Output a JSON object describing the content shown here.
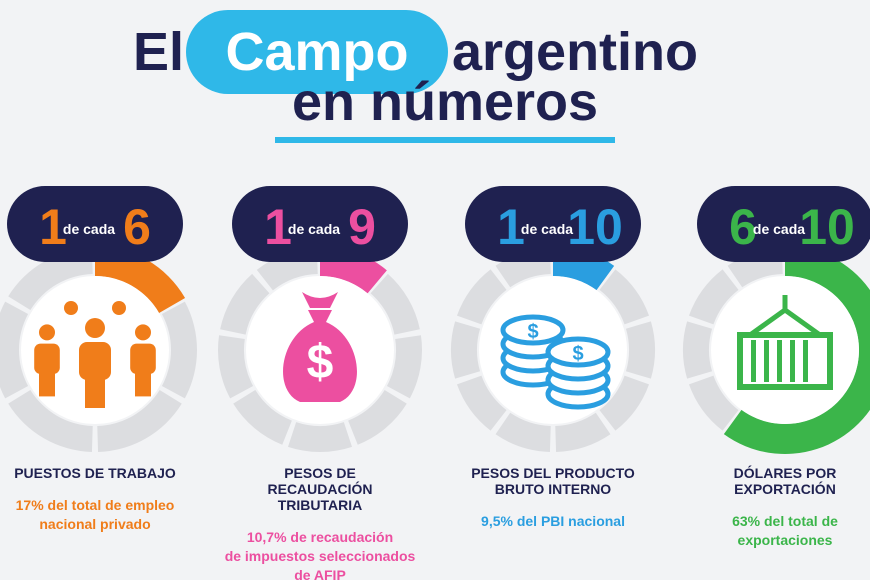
{
  "title": {
    "prefix": "El",
    "highlight": "Campo",
    "suffix": "argentino",
    "line2": "en números"
  },
  "items": [
    {
      "numerator": 1,
      "connector": "de cada",
      "denominator": 6,
      "color": "#f07d1a",
      "label": [
        "PUESTOS DE TRABAJO"
      ],
      "detail": [
        "17% del total de empleo",
        "nacional privado"
      ]
    },
    {
      "numerator": 1,
      "connector": "de cada",
      "denominator": 9,
      "color": "#ec4fa0",
      "label": [
        "PESOS DE",
        "RECAUDACIÓN",
        "TRIBUTARIA"
      ],
      "detail": [
        "10,7% de recaudación",
        "de impuestos seleccionados",
        "de AFIP"
      ]
    },
    {
      "numerator": 1,
      "connector": "de cada",
      "denominator": 10,
      "color": "#2a9ee0",
      "label": [
        "PESOS DEL PRODUCTO",
        "BRUTO INTERNO"
      ],
      "detail": [
        "9,5% del PBI nacional"
      ]
    },
    {
      "numerator": 6,
      "connector": "de cada",
      "denominator": 10,
      "color": "#3bb54a",
      "label": [
        "DÓLARES POR",
        "EXPORTACIÓN"
      ],
      "detail": [
        "63% del total de",
        "exportaciones"
      ]
    }
  ]
}
